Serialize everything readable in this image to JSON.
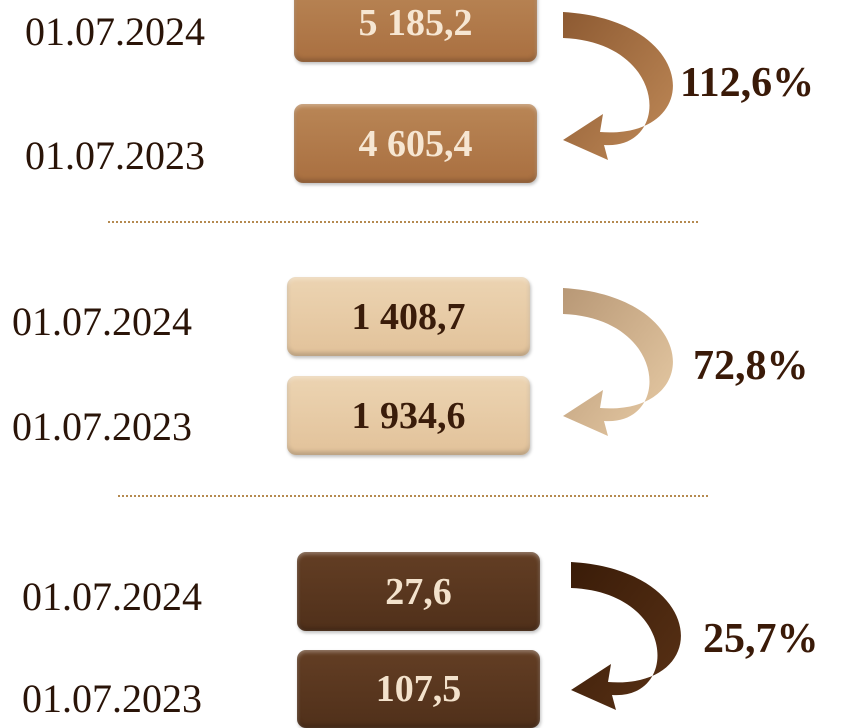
{
  "groups": [
    {
      "rows": [
        {
          "date": "01.07.2024",
          "value": "5 185,2"
        },
        {
          "date": "01.07.2023",
          "value": "4 605,4"
        }
      ],
      "ratio": "112,6%"
    },
    {
      "rows": [
        {
          "date": "01.07.2024",
          "value": "1 408,7"
        },
        {
          "date": "01.07.2023",
          "value": "1 934,6"
        }
      ],
      "ratio": "72,8%"
    },
    {
      "rows": [
        {
          "date": "01.07.2024",
          "value": "27,6"
        },
        {
          "date": "01.07.2023",
          "value": "107,5"
        }
      ],
      "ratio": "25,7%"
    }
  ]
}
